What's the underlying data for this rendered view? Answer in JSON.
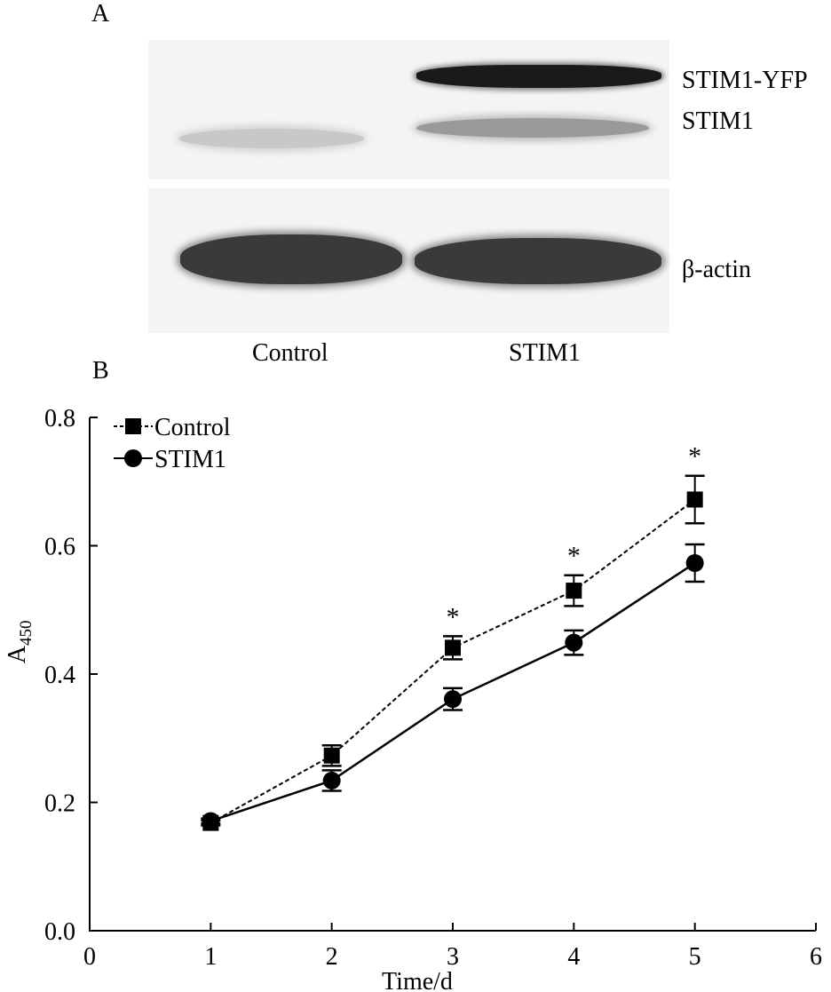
{
  "panel_a": {
    "letter": "A",
    "right_labels": [
      "STIM1-YFP",
      "STIM1",
      "β-actin"
    ],
    "lanes": [
      "Control",
      "STIM1"
    ]
  },
  "panel_b": {
    "letter": "B"
  },
  "chart_data": {
    "type": "line",
    "title": "",
    "xlabel": "Time/d",
    "ylabel_main": "A",
    "ylabel_sub": "450",
    "xlim": [
      0,
      6
    ],
    "ylim": [
      0,
      0.8
    ],
    "xticks": [
      0,
      1,
      2,
      3,
      4,
      5,
      6
    ],
    "yticks": [
      "0.0",
      "0.2",
      "0.4",
      "0.6",
      "0.8"
    ],
    "legend_position": "top-left",
    "significance_marker": "*",
    "significant_x": [
      3,
      4,
      5
    ],
    "series": [
      {
        "name": "Control",
        "marker": "square",
        "line": "dotted",
        "x": [
          1,
          2,
          3,
          4,
          5
        ],
        "y": [
          0.168,
          0.273,
          0.441,
          0.53,
          0.672
        ],
        "err": [
          0.004,
          0.016,
          0.018,
          0.024,
          0.037
        ]
      },
      {
        "name": "STIM1",
        "marker": "circle",
        "line": "solid",
        "x": [
          1,
          2,
          3,
          4,
          5
        ],
        "y": [
          0.171,
          0.234,
          0.361,
          0.449,
          0.573
        ],
        "err": [
          0.004,
          0.016,
          0.017,
          0.019,
          0.029
        ]
      }
    ]
  }
}
